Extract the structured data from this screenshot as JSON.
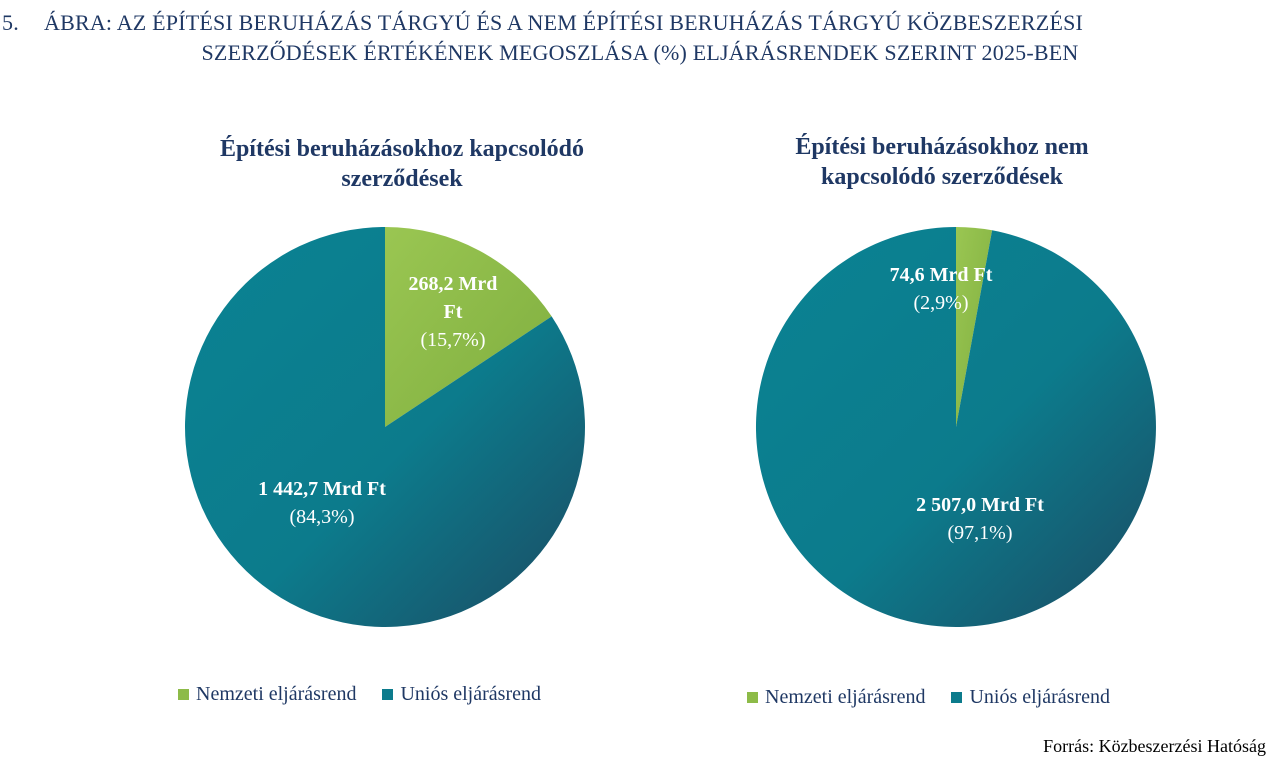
{
  "figure": {
    "number": "5.",
    "title_line1": "ÁBRA: AZ ÉPÍTÉSI BERUHÁZÁS TÁRGYÚ ÉS A NEM ÉPÍTÉSI BERUHÁZÁS TÁRGYÚ KÖZBESZERZÉSI",
    "title_line2": "SZERZŐDÉSEK ÉRTÉKÉNEK MEGOSZLÁSA (%) ELJÁRÁSRENDEK SZERINT 2025-BEN"
  },
  "colors": {
    "nemzeti": "#8dbb48",
    "unios": "#0c7b8c",
    "unios_dark": "#1b4e66",
    "text": "#1f3864"
  },
  "chart_data": [
    {
      "type": "pie",
      "title_line1": "Építési beruházásokhoz kapcsolódó",
      "title_line2": "szerződések",
      "slices": [
        {
          "name": "Nemzeti eljárásrend",
          "value": 268.2,
          "percent": 15.7,
          "value_label_line1": "268,2 Mrd",
          "value_label_line2": "Ft",
          "percent_label": "(15,7%)"
        },
        {
          "name": "Uniós eljárásrend",
          "value": 1442.7,
          "percent": 84.3,
          "value_label_line1": "1 442,7 Mrd Ft",
          "value_label_line2": "",
          "percent_label": "(84,3%)"
        }
      ],
      "legend": [
        "Nemzeti eljárásrend",
        "Uniós eljárásrend"
      ],
      "legend_position": "bottom"
    },
    {
      "type": "pie",
      "title_line1": "Építési beruházásokhoz nem",
      "title_line2": "kapcsolódó szerződések",
      "slices": [
        {
          "name": "Nemzeti eljárásrend",
          "value": 74.6,
          "percent": 2.9,
          "value_label_line1": "74,6 Mrd Ft",
          "value_label_line2": "",
          "percent_label": "(2,9%)"
        },
        {
          "name": "Uniós eljárásrend",
          "value": 2507.0,
          "percent": 97.1,
          "value_label_line1": "2 507,0 Mrd Ft",
          "value_label_line2": "",
          "percent_label": "(97,1%)"
        }
      ],
      "legend": [
        "Nemzeti eljárásrend",
        "Uniós eljárásrend"
      ],
      "legend_position": "bottom"
    }
  ],
  "source": "Forrás: Közbeszerzési Hatóság"
}
